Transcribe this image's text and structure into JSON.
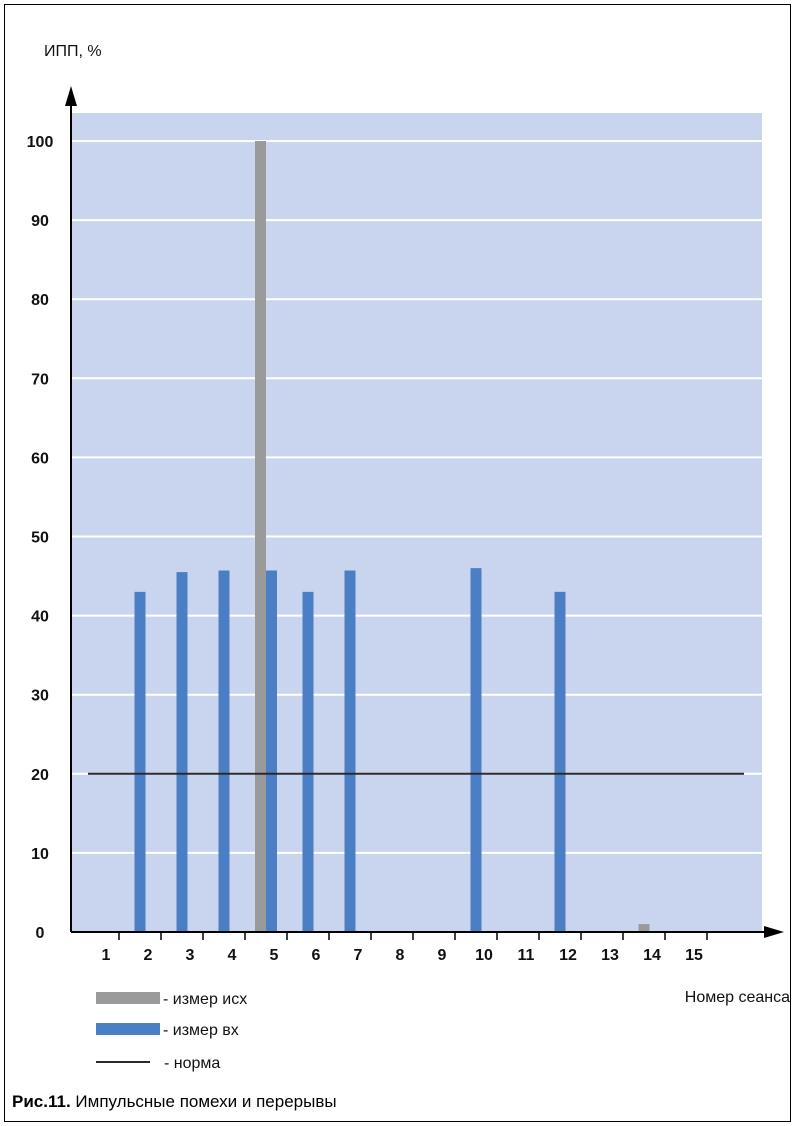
{
  "caption": {
    "label": "Рис.11.",
    "text": "Импульсные помехи и перерывы"
  },
  "colors": {
    "plot_bg": "#c9d4ee",
    "gridline": "#ffffff",
    "bar_source": "#9a9a9a",
    "bar_input": "#4a7fc6",
    "norm_line": "#2a2a2a"
  },
  "chart_data": {
    "type": "bar",
    "title": "",
    "ylabel": "ИПП, %",
    "xlabel": "Номер сеанса",
    "ylim": [
      0,
      100
    ],
    "yticks": [
      0,
      10,
      20,
      30,
      40,
      50,
      60,
      70,
      80,
      90,
      100
    ],
    "categories": [
      "1",
      "2",
      "3",
      "4",
      "5",
      "6",
      "7",
      "8",
      "9",
      "10",
      "11",
      "12",
      "13",
      "14",
      "15"
    ],
    "grid": true,
    "series": [
      {
        "name": "- измер исх",
        "values": [
          0,
          0,
          0,
          0,
          100,
          0,
          0,
          0,
          0,
          0,
          0,
          0,
          0,
          1,
          0
        ]
      },
      {
        "name": "- измер вх",
        "values": [
          0,
          43,
          45.5,
          45.7,
          45.7,
          43,
          45.7,
          0,
          0,
          46,
          0,
          43,
          0,
          0,
          0
        ]
      }
    ],
    "reference_line": {
      "name": "- норма",
      "value": 20
    },
    "legend_position": "bottom-left"
  }
}
